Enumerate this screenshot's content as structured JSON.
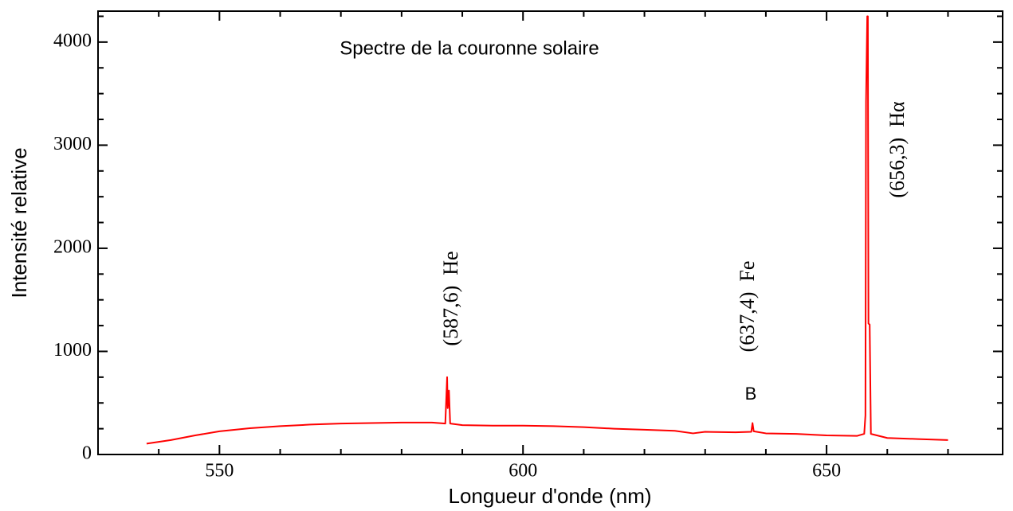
{
  "chart_data": {
    "type": "line",
    "title": "Spectre de la couronne solaire",
    "x_label": "Longueur d'onde (nm)",
    "y_label": "Intensité relative",
    "annotations": [
      "(587,6)  He",
      "(637,4)  Fe",
      "(656,3)  Hα",
      "B"
    ],
    "xlim": [
      530,
      679
    ],
    "ylim": [
      0,
      4300
    ],
    "xticks": [
      550,
      600,
      650
    ],
    "xminorticks": [
      540,
      560,
      570,
      580,
      590,
      610,
      620,
      630,
      640,
      660,
      670
    ],
    "yticks": [
      0,
      1000,
      2000,
      3000,
      4000
    ],
    "yminorticks": [
      250,
      500,
      750,
      1250,
      1500,
      1750,
      2250,
      2500,
      2750,
      3250,
      3500,
      3750,
      4250
    ],
    "x": [
      538,
      542,
      546,
      550,
      555,
      560,
      565,
      570,
      575,
      580,
      585,
      587.2,
      587.5,
      587.6,
      587.8,
      588,
      590,
      595,
      600,
      605,
      610,
      615,
      620,
      625,
      628,
      630,
      635,
      637.6,
      637.8,
      638,
      640,
      645,
      650,
      655,
      656.2,
      656.4,
      656.5,
      656.7,
      656.8,
      656.9,
      657.1,
      657.3,
      660,
      665,
      670
    ],
    "series": [
      {
        "name": "Spectre",
        "color": "#ff0000",
        "values": [
          105,
          140,
          185,
          225,
          255,
          275,
          290,
          300,
          305,
          310,
          310,
          300,
          750,
          450,
          620,
          300,
          285,
          280,
          280,
          275,
          265,
          250,
          240,
          230,
          205,
          220,
          215,
          220,
          305,
          225,
          205,
          200,
          185,
          180,
          200,
          380,
          3420,
          4250,
          4250,
          1270,
          1260,
          200,
          160,
          150,
          140
        ]
      }
    ]
  }
}
